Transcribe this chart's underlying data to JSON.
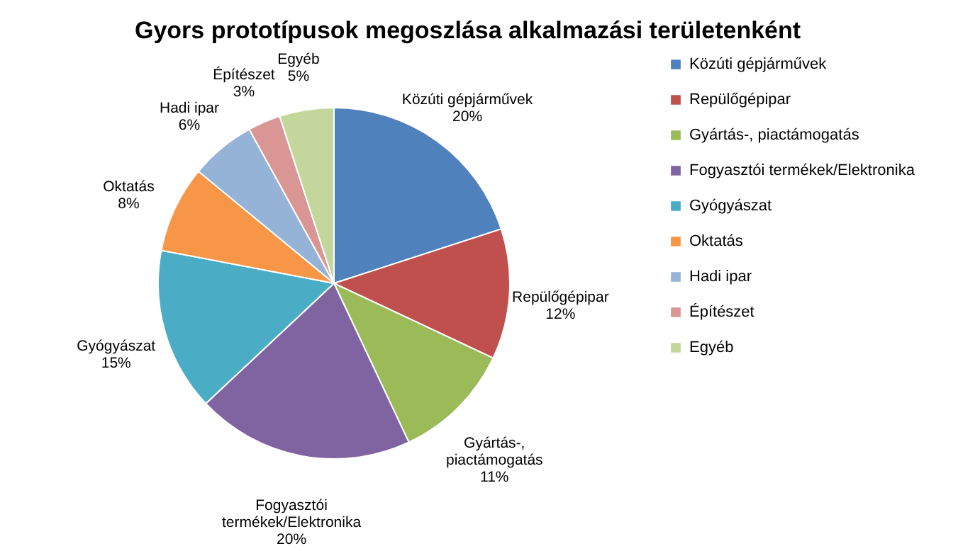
{
  "chart_data": {
    "type": "pie",
    "title": "Gyors prototípusok  megoszlása  alkalmazási  területenként",
    "categories": [
      "Közúti gépjárművek",
      "Repülőgépipar",
      "Gyártás-, piactámogatás",
      "Fogyasztói termékek/Elektronika",
      "Gyógyászat",
      "Oktatás",
      "Hadi ipar",
      "Építészet",
      "Egyéb"
    ],
    "values": [
      20,
      12,
      11,
      20,
      15,
      8,
      6,
      3,
      5
    ],
    "value_labels": [
      "20%",
      "12%",
      "11%",
      "20%",
      "15%",
      "8%",
      "6%",
      "3%",
      "5%"
    ],
    "colors": [
      "#4f81bd",
      "#c0504d",
      "#9bbb59",
      "#8064a2",
      "#4bacc6",
      "#f79646",
      "#95b3d7",
      "#d99694",
      "#c3d69b"
    ],
    "legend": "right"
  }
}
